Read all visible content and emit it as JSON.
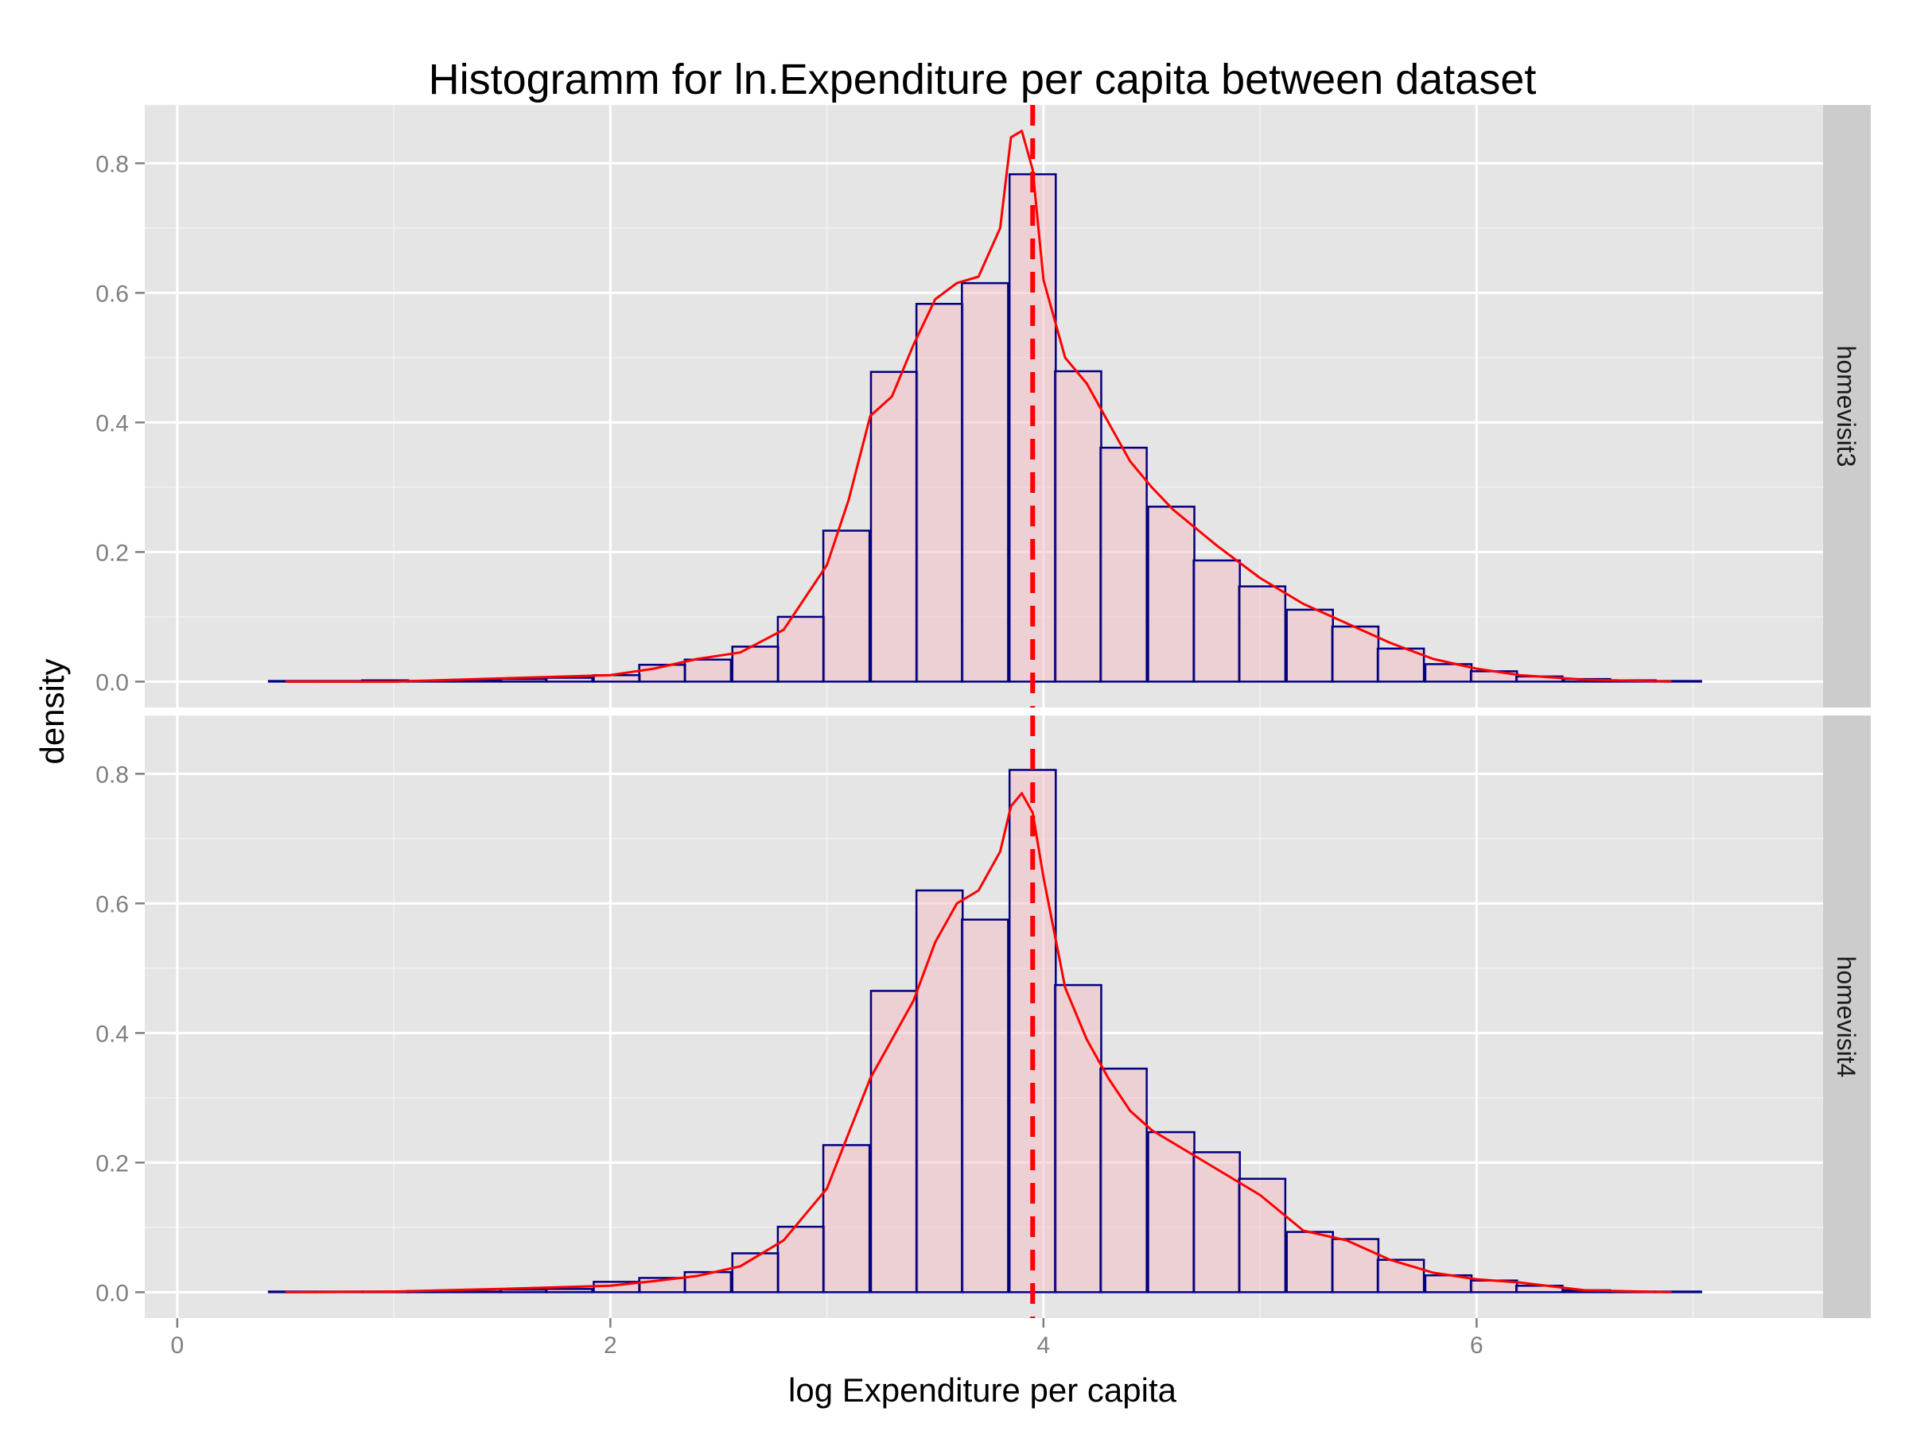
{
  "chart_data": {
    "type": "histogram",
    "title": "Histogramm for ln.Expenditure per capita between dataset",
    "xlabel": "log Expenditure per capita",
    "ylabel": "density",
    "xlim": [
      -0.15,
      7.6
    ],
    "ylim": [
      -0.04,
      0.89
    ],
    "x_ticks": [
      0,
      2,
      4,
      6
    ],
    "y_ticks": [
      0.0,
      0.2,
      0.4,
      0.6,
      0.8
    ],
    "y_tick_labels": [
      "0.0",
      "0.2",
      "0.4",
      "0.6",
      "0.8"
    ],
    "grid": true,
    "mean_line": {
      "x": 3.95,
      "color": "#ff0000",
      "style": "dashed"
    },
    "bin_width": 0.2133,
    "bin_centers": [
      0.32,
      0.53,
      0.75,
      0.96,
      1.17,
      1.39,
      1.6,
      1.81,
      2.03,
      2.24,
      2.45,
      2.67,
      2.88,
      3.09,
      3.31,
      3.52,
      3.73,
      3.95,
      4.16,
      4.37,
      4.59,
      4.8,
      5.01,
      5.23,
      5.44,
      5.65,
      5.87,
      6.08,
      6.29,
      6.51,
      6.72,
      6.93,
      7.15
    ],
    "colors": {
      "bar_fill": "#f2bfc6",
      "bar_outline": "#000080",
      "density_line": "#ff0000",
      "panel_bg": "#e5e5e5",
      "strip_bg": "#cccccc"
    },
    "panels": [
      {
        "label": "homevisit3",
        "bar_values": [
          0.0,
          0.001,
          0.001,
          0.002,
          0.001,
          0.002,
          0.004,
          0.006,
          0.01,
          0.026,
          0.034,
          0.054,
          0.1,
          0.233,
          0.478,
          0.583,
          0.615,
          0.783,
          0.479,
          0.361,
          0.27,
          0.187,
          0.147,
          0.111,
          0.085,
          0.051,
          0.027,
          0.016,
          0.008,
          0.004,
          0.002,
          0.001,
          0.0
        ],
        "density_x": [
          0.5,
          1.0,
          1.5,
          2.0,
          2.2,
          2.4,
          2.6,
          2.8,
          3.0,
          3.1,
          3.2,
          3.3,
          3.4,
          3.5,
          3.6,
          3.7,
          3.8,
          3.85,
          3.9,
          3.95,
          4.0,
          4.1,
          4.2,
          4.3,
          4.4,
          4.5,
          4.6,
          4.8,
          5.0,
          5.2,
          5.4,
          5.6,
          5.8,
          6.0,
          6.2,
          6.5,
          6.9
        ],
        "density_y": [
          0.0,
          0.0,
          0.005,
          0.01,
          0.02,
          0.035,
          0.045,
          0.08,
          0.18,
          0.28,
          0.41,
          0.44,
          0.52,
          0.59,
          0.615,
          0.625,
          0.7,
          0.84,
          0.85,
          0.79,
          0.62,
          0.5,
          0.46,
          0.4,
          0.34,
          0.3,
          0.265,
          0.21,
          0.16,
          0.12,
          0.09,
          0.06,
          0.035,
          0.02,
          0.01,
          0.003,
          0.0
        ]
      },
      {
        "label": "homevisit4",
        "bar_values": [
          0.0,
          0.001,
          0.001,
          0.001,
          0.002,
          0.001,
          0.004,
          0.005,
          0.016,
          0.022,
          0.031,
          0.06,
          0.101,
          0.227,
          0.465,
          0.62,
          0.575,
          0.806,
          0.474,
          0.345,
          0.247,
          0.216,
          0.175,
          0.093,
          0.082,
          0.05,
          0.026,
          0.018,
          0.01,
          0.003,
          0.001,
          0.001,
          0.0
        ],
        "density_x": [
          0.5,
          1.0,
          1.5,
          2.0,
          2.2,
          2.4,
          2.6,
          2.8,
          3.0,
          3.2,
          3.4,
          3.5,
          3.6,
          3.7,
          3.8,
          3.85,
          3.9,
          3.95,
          4.0,
          4.1,
          4.2,
          4.3,
          4.4,
          4.5,
          4.6,
          4.8,
          5.0,
          5.2,
          5.4,
          5.6,
          5.8,
          6.0,
          6.2,
          6.5,
          6.9
        ],
        "density_y": [
          0.0,
          0.001,
          0.005,
          0.01,
          0.017,
          0.025,
          0.04,
          0.08,
          0.16,
          0.33,
          0.45,
          0.54,
          0.6,
          0.62,
          0.68,
          0.75,
          0.77,
          0.74,
          0.64,
          0.47,
          0.39,
          0.33,
          0.28,
          0.25,
          0.23,
          0.19,
          0.15,
          0.095,
          0.08,
          0.05,
          0.03,
          0.02,
          0.015,
          0.003,
          0.0
        ]
      }
    ]
  }
}
